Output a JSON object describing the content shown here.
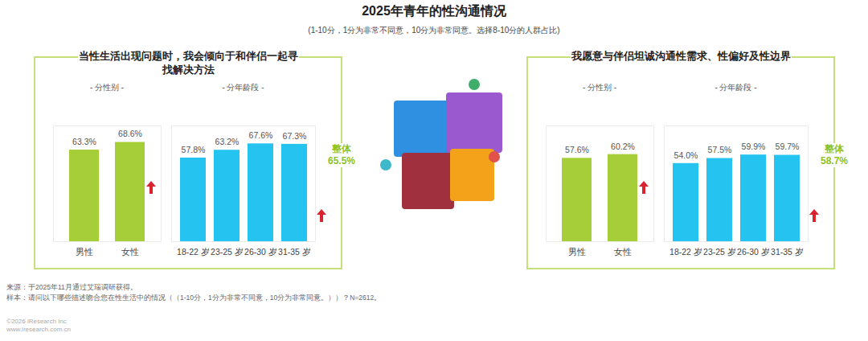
{
  "header": {
    "title": "2025年青年的性沟通情况",
    "subtitle": "(1-10分，1分为非常不同意，10分为非常同意。选择8-10分的人群占比)"
  },
  "chart_data": [
    {
      "type": "bar",
      "title": "当性生活出现问题时，我会倾向于和伴侣一起寻找解决方法",
      "ylim": [
        0,
        80
      ],
      "yticks": [],
      "data_labels": true,
      "tick_labels": "x",
      "groups": [
        {
          "name": "- 分性别 -",
          "categories": [
            "男性",
            "女性"
          ],
          "values": [
            63.3,
            68.6
          ],
          "value_labels": [
            "63.3%",
            "68.6%"
          ],
          "color": "#a6ce39"
        },
        {
          "name": "- 分年龄段 -",
          "categories": [
            "18-22 岁",
            "23-25 岁",
            "26-30 岁",
            "31-35 岁"
          ],
          "values": [
            57.8,
            63.2,
            67.6,
            67.3
          ],
          "value_labels": [
            "57.8%",
            "63.2%",
            "67.6%",
            "67.3%"
          ],
          "color": "#25c3f0"
        }
      ],
      "annotations": [
        {
          "text": "整体",
          "value": 65.5,
          "value_label": "65.5%"
        }
      ]
    },
    {
      "type": "bar",
      "title": "我愿意与伴侣坦诚沟通性需求、性偏好及性边界",
      "ylim": [
        0,
        80
      ],
      "yticks": [],
      "data_labels": true,
      "tick_labels": "x",
      "groups": [
        {
          "name": "- 分性别 -",
          "categories": [
            "男性",
            "女性"
          ],
          "values": [
            57.6,
            60.2
          ],
          "value_labels": [
            "57.6%",
            "60.2%"
          ],
          "color": "#a6ce39"
        },
        {
          "name": "- 分年龄段 -",
          "categories": [
            "18-22 岁",
            "23-25 岁",
            "26-30 岁",
            "31-35 岁"
          ],
          "values": [
            54.0,
            57.5,
            59.9,
            59.7
          ],
          "value_labels": [
            "54.0%",
            "57.5%",
            "59.9%",
            "59.7%"
          ],
          "color": "#25c3f0"
        }
      ],
      "annotations": [
        {
          "text": "整体",
          "value": 58.7,
          "value_label": "58.7%"
        }
      ]
    }
  ],
  "footer": {
    "source": "来源：于2025年11月通过艾瑞调研获得。",
    "sample": "样本：请问以下哪些描述吻合您在性生活中的情况（（1-10分，1分为非常不同意，10分为非常同意。））？N=2612。",
    "copyright": "©2026 iResearch Inc",
    "website": "www.iresearch.com.cn"
  }
}
